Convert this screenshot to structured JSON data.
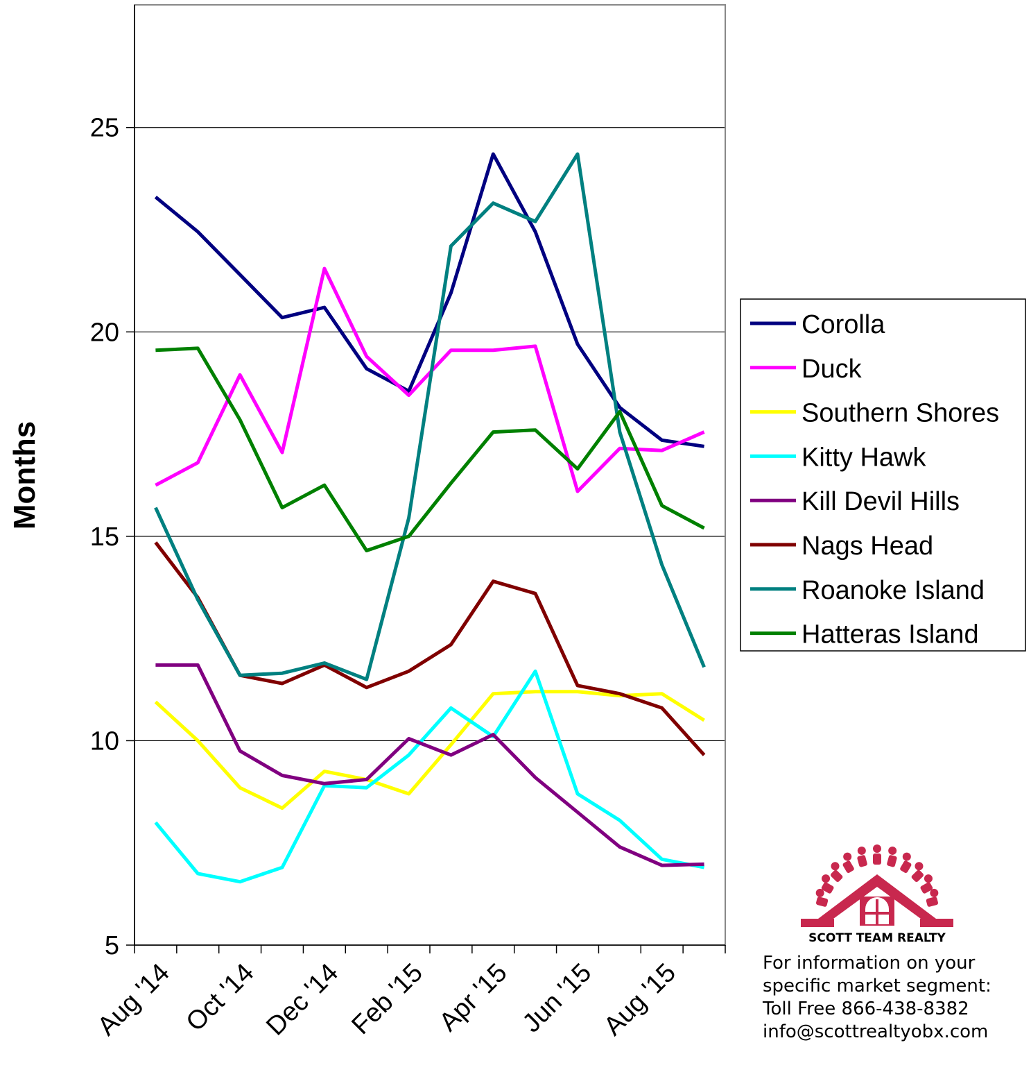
{
  "chart_data": {
    "type": "line",
    "title": "",
    "xlabel": "",
    "ylabel": "Months",
    "ylim": [
      5,
      28
    ],
    "y_ticks": [
      5,
      10,
      15,
      20,
      25
    ],
    "y_tick_labels": [
      "5",
      "10",
      "15",
      "20",
      "25"
    ],
    "grid": "horizontal major gridlines at 10, 15, 20, 25",
    "legend_position": "right",
    "x": [
      "Aug '14",
      "Sep '14",
      "Oct '14",
      "Nov '14",
      "Dec '14",
      "Jan '15",
      "Feb '15",
      "Mar '15",
      "Apr '15",
      "May '15",
      "Jun '15",
      "Jul '15",
      "Aug '15",
      "Sep '15"
    ],
    "x_tick_labels": [
      "Aug '14",
      "Oct '14",
      "Dec '14",
      "Feb '15",
      "Apr '15",
      "Jun '15",
      "Aug '15"
    ],
    "series": [
      {
        "name": "Corolla",
        "color": "#000080",
        "values": [
          23.3,
          22.45,
          21.4,
          20.35,
          20.6,
          19.1,
          18.55,
          20.95,
          24.35,
          22.45,
          19.7,
          18.15,
          17.35,
          17.2
        ]
      },
      {
        "name": "Duck",
        "color": "#FF00FF",
        "values": [
          16.25,
          16.8,
          18.95,
          17.05,
          21.55,
          19.4,
          18.45,
          19.55,
          19.55,
          19.65,
          16.1,
          17.15,
          17.1,
          17.55
        ]
      },
      {
        "name": "Southern Shores",
        "color": "#FFFF00",
        "values": [
          10.95,
          10.0,
          8.85,
          8.35,
          9.25,
          9.05,
          8.7,
          9.9,
          11.15,
          11.2,
          11.2,
          11.1,
          11.15,
          10.5
        ]
      },
      {
        "name": "Kitty Hawk",
        "color": "#00FFFF",
        "values": [
          8.0,
          6.75,
          6.55,
          6.9,
          8.9,
          8.85,
          9.65,
          10.8,
          10.1,
          11.7,
          8.7,
          8.05,
          7.1,
          6.9
        ]
      },
      {
        "name": "Kill Devil Hills",
        "color": "#800080",
        "values": [
          11.85,
          11.85,
          9.75,
          9.15,
          8.95,
          9.05,
          10.05,
          9.65,
          10.15,
          9.1,
          8.25,
          7.4,
          6.95,
          6.98
        ]
      },
      {
        "name": "Nags Head",
        "color": "#800000",
        "values": [
          14.85,
          13.5,
          11.6,
          11.4,
          11.85,
          11.3,
          11.7,
          12.35,
          13.9,
          13.6,
          11.35,
          11.15,
          10.8,
          9.65
        ]
      },
      {
        "name": "Roanoke Island",
        "color": "#008080",
        "values": [
          15.7,
          13.45,
          11.6,
          11.65,
          11.9,
          11.5,
          15.45,
          22.1,
          23.15,
          22.7,
          24.35,
          17.55,
          14.3,
          11.8
        ]
      },
      {
        "name": "Hatteras Island",
        "color": "#008000",
        "values": [
          19.55,
          19.6,
          17.85,
          15.7,
          16.25,
          14.65,
          15.0,
          16.3,
          17.55,
          17.6,
          16.65,
          18.05,
          15.75,
          15.2
        ]
      }
    ]
  },
  "logo": {
    "name": "SCOTT TEAM REALTY",
    "color": "#C8284E",
    "icon": "house-with-people-arc-logo"
  },
  "info": {
    "line1": "For information on your",
    "line2": "specific market segment:",
    "line3": "Toll Free 866-438-8382",
    "line4": "info@scottrealtyobx.com"
  }
}
